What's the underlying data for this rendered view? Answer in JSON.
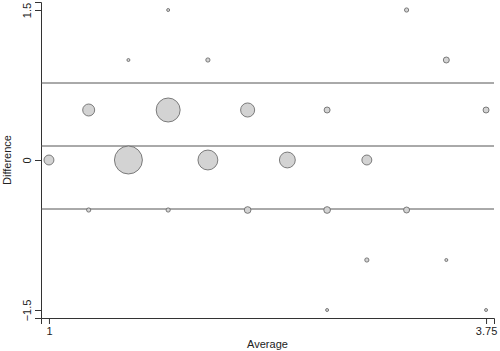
{
  "chart_data": {
    "type": "bubble",
    "x_label": "Average",
    "y_label": "Difference",
    "x": [
      1,
      1.25,
      1.25,
      1.5,
      1.5,
      1.75,
      1.75,
      1.75,
      2,
      2,
      2.25,
      2.25,
      2.5,
      2.75,
      2.75,
      2.75,
      3,
      3,
      3.25,
      3.25,
      3.5,
      3.5,
      3.75,
      3.75
    ],
    "values": [
      0,
      0.5,
      -0.5,
      0,
      1,
      1.5,
      0.5,
      -0.5,
      0,
      1,
      0.5,
      -0.5,
      0,
      0.5,
      -0.5,
      -1.5,
      0,
      -1,
      1.5,
      -0.5,
      1,
      -1,
      0.5,
      -1.5
    ],
    "sizes": [
      11,
      16,
      2,
      87,
      1,
      1,
      64,
      2,
      44,
      2,
      22,
      5,
      28,
      4,
      5,
      1,
      11,
      2,
      2,
      4,
      4,
      1,
      4,
      1
    ],
    "mean_difference": 0.14,
    "limits_of_agreement": [
      -0.49,
      0.77
    ],
    "color": "#d3d3d3",
    "xlim": [
      0.95,
      3.8
    ],
    "ylim": [
      -1.58,
      1.58
    ],
    "xticks": [
      1,
      3.75
    ],
    "yticks": [
      {
        "value": -1.5,
        "label": "−1.5"
      },
      0,
      1.5
    ]
  }
}
